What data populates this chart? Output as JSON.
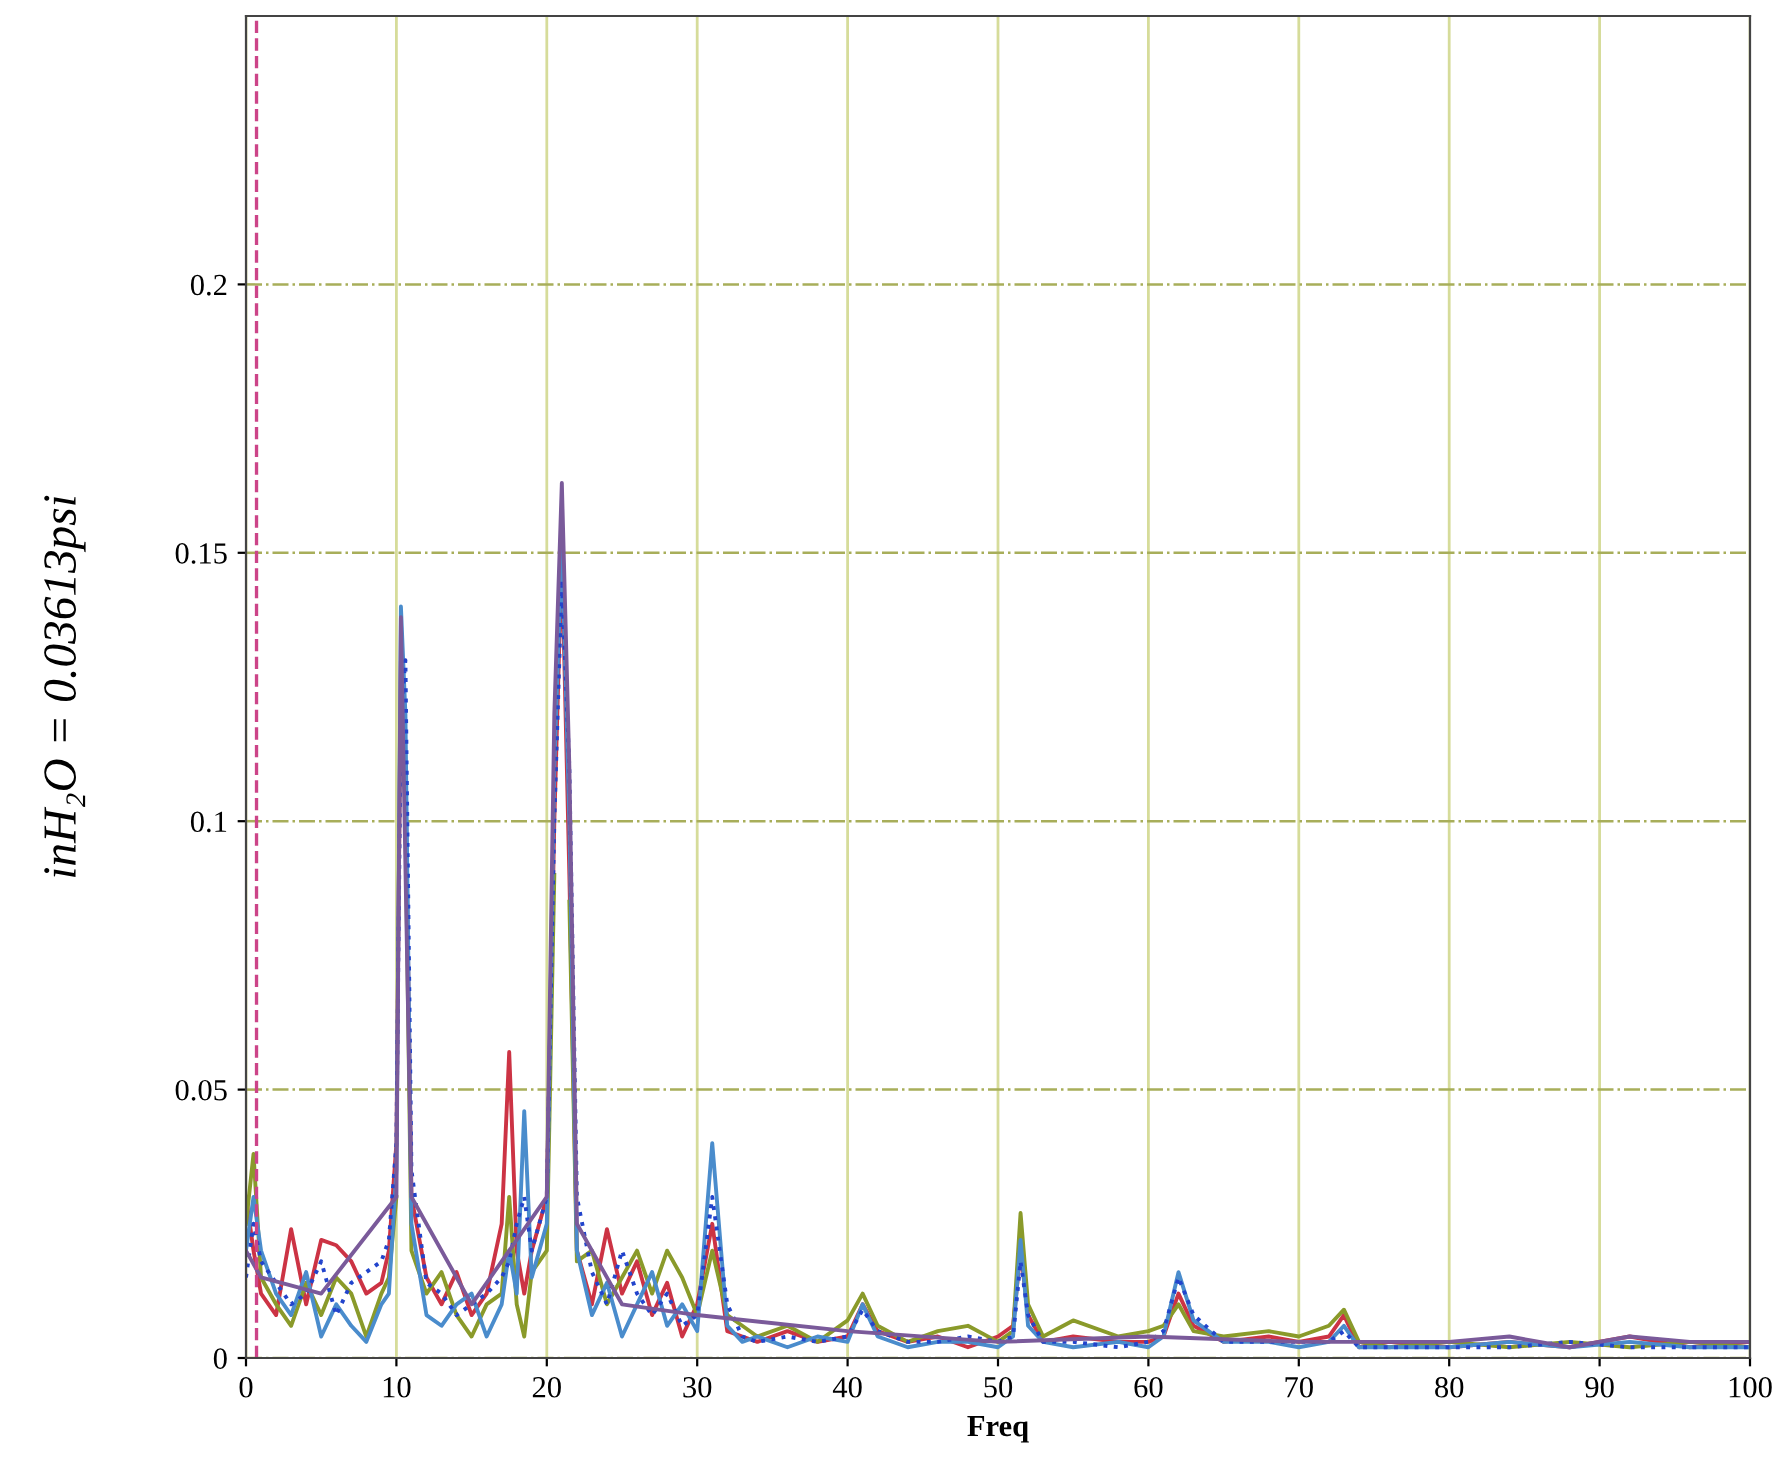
{
  "chart_data": {
    "type": "line",
    "xlabel": "Freq",
    "ylabel": "inH₂O = 0.03613psi",
    "x": [
      0,
      0.5,
      1,
      2,
      3,
      4,
      5,
      6,
      7,
      8,
      9,
      9.5,
      10,
      10.3,
      10.6,
      11,
      12,
      13,
      14,
      15,
      16,
      17,
      17.5,
      18,
      18.5,
      19,
      20,
      20.5,
      21,
      21.5,
      22,
      23,
      24,
      25,
      26,
      27,
      28,
      29,
      30,
      31,
      32,
      33,
      34,
      36,
      38,
      40,
      41,
      42,
      44,
      46,
      48,
      50,
      51,
      51.5,
      52,
      53,
      55,
      58,
      60,
      61,
      62,
      63,
      65,
      68,
      70,
      72,
      73,
      74,
      76,
      80,
      84,
      88,
      92,
      96,
      100
    ],
    "series": [
      {
        "color": "#cc3344",
        "values": [
          0.03,
          0.02,
          0.012,
          0.008,
          0.024,
          0.01,
          0.022,
          0.021,
          0.018,
          0.012,
          0.014,
          0.02,
          0.04,
          0.13,
          0.11,
          0.03,
          0.015,
          0.01,
          0.016,
          0.008,
          0.012,
          0.025,
          0.057,
          0.02,
          0.012,
          0.02,
          0.03,
          0.1,
          0.15,
          0.09,
          0.02,
          0.01,
          0.024,
          0.012,
          0.018,
          0.008,
          0.014,
          0.004,
          0.01,
          0.025,
          0.005,
          0.004,
          0.003,
          0.005,
          0.003,
          0.004,
          0.01,
          0.005,
          0.003,
          0.004,
          0.002,
          0.004,
          0.006,
          0.02,
          0.008,
          0.003,
          0.004,
          0.003,
          0.003,
          0.004,
          0.012,
          0.006,
          0.003,
          0.004,
          0.003,
          0.004,
          0.008,
          0.002,
          0.003,
          0.002,
          0.003,
          0.002,
          0.004,
          0.002,
          0.003
        ]
      },
      {
        "color": "#8a9a2a",
        "values": [
          0.025,
          0.038,
          0.015,
          0.01,
          0.006,
          0.014,
          0.008,
          0.015,
          0.012,
          0.004,
          0.012,
          0.015,
          0.03,
          null,
          0.1,
          0.02,
          0.012,
          0.016,
          0.008,
          0.004,
          0.01,
          0.012,
          0.03,
          0.01,
          0.004,
          0.016,
          0.02,
          0.09,
          null,
          0.085,
          0.018,
          0.02,
          0.01,
          0.015,
          0.02,
          0.012,
          0.02,
          0.015,
          0.008,
          0.02,
          0.008,
          0.006,
          0.004,
          0.006,
          0.003,
          0.007,
          0.012,
          0.006,
          0.003,
          0.005,
          0.006,
          0.003,
          0.005,
          0.027,
          0.01,
          0.004,
          0.007,
          0.004,
          0.005,
          0.006,
          0.01,
          0.005,
          0.004,
          0.005,
          0.004,
          0.006,
          0.009,
          0.003,
          0.002,
          0.003,
          0.002,
          0.003,
          0.002,
          0.003,
          0.002
        ]
      },
      {
        "color": "#4a8ccc",
        "values": [
          0.02,
          0.03,
          0.02,
          0.012,
          0.008,
          0.016,
          0.004,
          0.01,
          0.006,
          0.003,
          0.01,
          0.012,
          0.035,
          0.14,
          0.12,
          0.025,
          0.008,
          0.006,
          0.01,
          0.012,
          0.004,
          0.01,
          0.02,
          0.012,
          0.046,
          0.015,
          0.025,
          0.11,
          0.152,
          0.1,
          0.02,
          0.008,
          0.014,
          0.004,
          0.01,
          0.016,
          0.006,
          0.01,
          0.005,
          0.04,
          0.006,
          0.003,
          0.004,
          0.002,
          0.004,
          0.003,
          0.01,
          0.004,
          0.002,
          0.003,
          0.003,
          0.002,
          0.004,
          0.022,
          0.006,
          0.003,
          0.002,
          0.003,
          0.002,
          0.004,
          0.016,
          0.007,
          0.003,
          0.003,
          0.002,
          0.003,
          0.006,
          0.002,
          0.002,
          0.002,
          0.003,
          0.002,
          0.003,
          0.002,
          0.002
        ]
      },
      {
        "color": "#2244cc",
        "line_style": "dotted",
        "values": [
          0.015,
          0.025,
          0.018,
          0.014,
          0.01,
          0.012,
          0.018,
          0.008,
          0.014,
          0.016,
          0.018,
          0.022,
          0.04,
          0.12,
          0.13,
          0.035,
          0.014,
          0.012,
          0.008,
          0.01,
          0.012,
          0.015,
          0.018,
          0.025,
          0.03,
          0.02,
          0.03,
          0.1,
          0.145,
          0.11,
          0.03,
          0.016,
          0.01,
          0.02,
          0.012,
          0.008,
          0.012,
          0.006,
          0.008,
          0.03,
          0.01,
          0.004,
          0.003,
          0.004,
          0.003,
          0.004,
          0.009,
          0.005,
          0.003,
          0.003,
          0.004,
          0.003,
          0.004,
          0.018,
          0.008,
          0.003,
          0.003,
          0.002,
          0.003,
          0.005,
          0.015,
          0.008,
          0.003,
          0.003,
          0.003,
          0.003,
          0.005,
          0.002,
          0.002,
          0.002,
          0.002,
          0.003,
          0.002,
          0.002,
          0.002
        ]
      },
      {
        "color": "#7a5a9a",
        "x": [
          0,
          1,
          5,
          10,
          10.3,
          11,
          15,
          20,
          20.5,
          21,
          21.5,
          22,
          25,
          30,
          40,
          50,
          60,
          70,
          80,
          84,
          88,
          92,
          96,
          100
        ],
        "values": [
          0.02,
          0.015,
          0.012,
          0.03,
          0.138,
          0.03,
          0.01,
          0.03,
          0.12,
          0.163,
          0.11,
          0.025,
          0.01,
          0.008,
          0.005,
          0.003,
          0.004,
          0.003,
          0.003,
          0.004,
          0.002,
          0.004,
          0.003,
          0.003
        ]
      }
    ],
    "ref_lines": [
      {
        "axis": "x",
        "value": 0.7,
        "color": "#cc4488",
        "line_style": "dashed"
      }
    ],
    "xlim": [
      0,
      100
    ],
    "xticks": [
      0,
      10,
      20,
      30,
      40,
      50,
      60,
      70,
      80,
      90,
      100
    ],
    "ylim": [
      0,
      0.25
    ],
    "yticks": [
      0,
      0.05,
      0.1,
      0.15,
      0.2
    ],
    "grid": true,
    "line_style": "solid",
    "legend": false
  }
}
